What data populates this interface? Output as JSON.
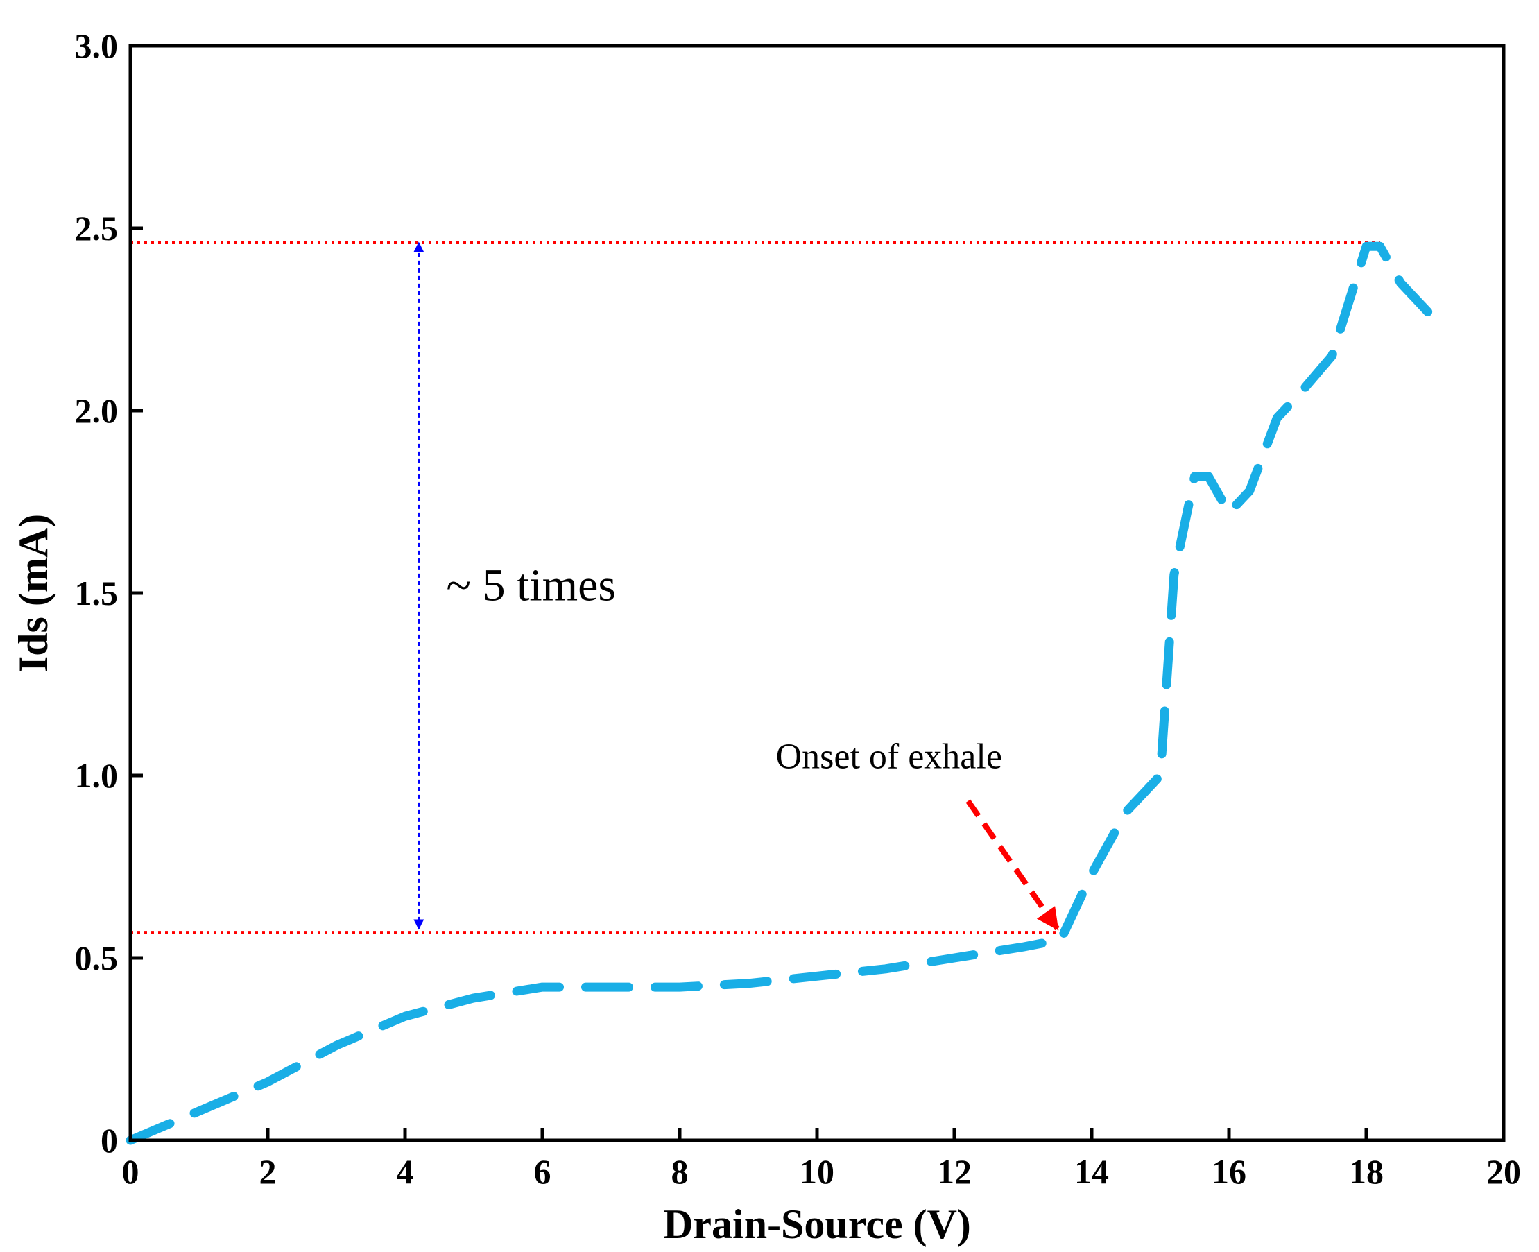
{
  "chart_data": {
    "type": "line",
    "title": "",
    "xlabel": "Drain-Source (V)",
    "ylabel": "Ids (mA)",
    "xlim": [
      0,
      20
    ],
    "ylim": [
      0,
      3.0
    ],
    "grid": false,
    "x_ticks": [
      0,
      2,
      4,
      6,
      8,
      10,
      12,
      14,
      16,
      18,
      20
    ],
    "x_tick_labels": [
      "0",
      "2",
      "4",
      "6",
      "8",
      "10",
      "12",
      "14",
      "16",
      "18",
      "20"
    ],
    "y_ticks": [
      0,
      0.5,
      1.0,
      1.5,
      2.0,
      2.5,
      3.0
    ],
    "y_tick_labels": [
      "0",
      "0.5",
      "1.0",
      "1.5",
      "2.0",
      "2.5",
      "3.0"
    ],
    "series": [
      {
        "name": "Ids",
        "color": "#19aee6",
        "style": "dashed",
        "x": [
          0,
          1,
          2,
          3,
          4,
          5,
          6,
          7,
          8,
          9,
          10,
          11,
          12,
          13,
          13.55,
          14,
          14.5,
          15,
          15.2,
          15.5,
          15.7,
          16,
          16.3,
          16.7,
          17,
          17.5,
          18,
          18.2,
          18.5,
          19
        ],
        "y": [
          0,
          0.08,
          0.16,
          0.26,
          0.34,
          0.39,
          0.42,
          0.42,
          0.42,
          0.43,
          0.45,
          0.47,
          0.5,
          0.53,
          0.55,
          0.73,
          0.9,
          1.0,
          1.55,
          1.82,
          1.82,
          1.72,
          1.78,
          1.98,
          2.04,
          2.15,
          2.45,
          2.45,
          2.35,
          2.25
        ]
      }
    ],
    "reference_lines": [
      {
        "orientation": "horizontal",
        "y": 2.46,
        "x_from": 0,
        "x_to": 18.2,
        "color": "#ff0000",
        "style": "dotted"
      },
      {
        "orientation": "horizontal",
        "y": 0.57,
        "x_from": 0,
        "x_to": 13.55,
        "color": "#ff0000",
        "style": "dotted"
      }
    ],
    "annotations": [
      {
        "text": "~ 5 times",
        "x": 4.6,
        "y": 1.48,
        "type": "label"
      },
      {
        "text": "",
        "type": "double-arrow",
        "x": 4.2,
        "y_from": 0.58,
        "y_to": 2.46,
        "color": "#0000ff"
      },
      {
        "text": "Onset of exhale",
        "x": 9.4,
        "y": 1.02,
        "type": "label"
      },
      {
        "text": "",
        "type": "arrow",
        "x_from": 12.2,
        "y_from": 0.93,
        "x_to": 13.5,
        "y_to": 0.58,
        "color": "#ff0000"
      }
    ]
  }
}
